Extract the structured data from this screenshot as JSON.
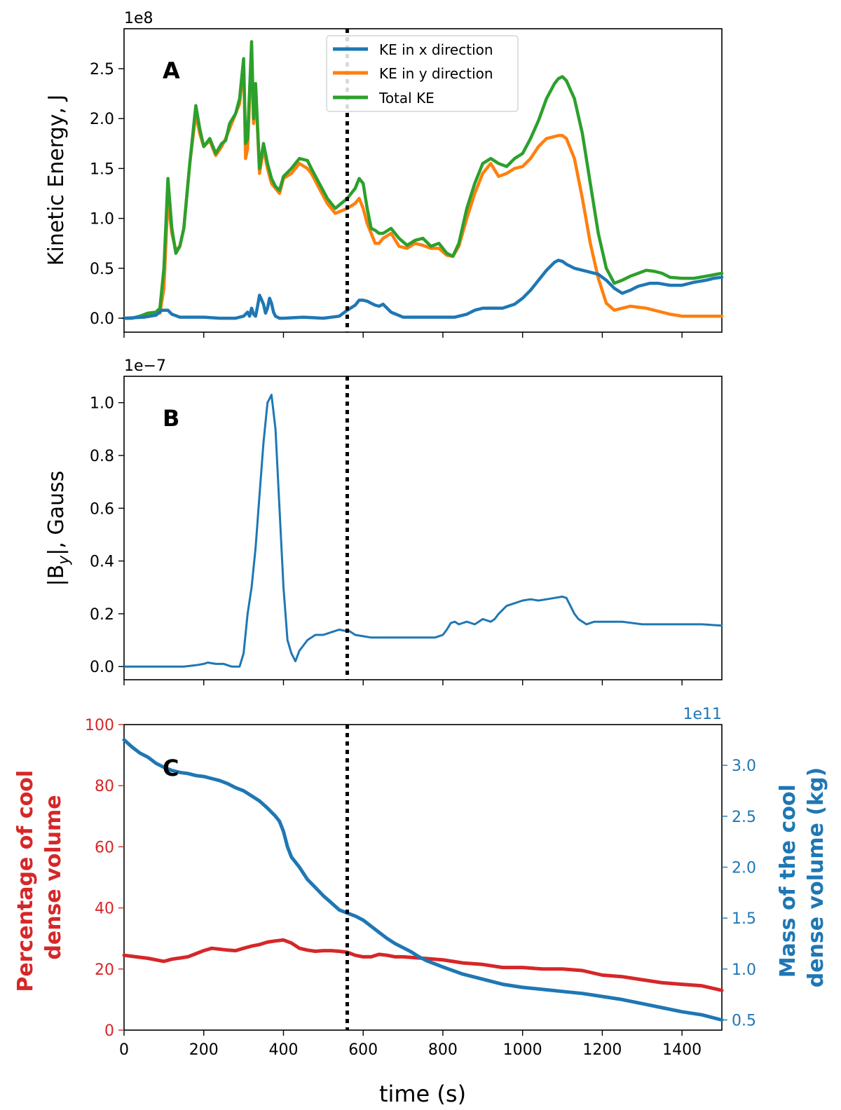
{
  "colors": {
    "blue": "#1f77b4",
    "orange": "#ff7f0e",
    "green": "#2ca02c",
    "red": "#d62728",
    "black": "#000000"
  },
  "vline_time": 560,
  "chart_data": [
    {
      "panel": "A",
      "type": "line",
      "ylabel": "Kinetic Energy, J",
      "offset_label": "1e8",
      "panel_label": "A",
      "xlim": [
        0,
        1500
      ],
      "ylim": [
        -0.14,
        2.9
      ],
      "xticks": [
        0,
        200,
        400,
        600,
        800,
        1000,
        1200,
        1400
      ],
      "yticks": [
        0.0,
        0.5,
        1.0,
        1.5,
        2.0,
        2.5
      ],
      "ytick_labels": [
        "0.0",
        "0.5",
        "1.0",
        "1.5",
        "2.0",
        "2.5"
      ],
      "legend_position": "upper-center",
      "series": [
        {
          "name": "KE in y direction",
          "color": "#ff7f0e",
          "x": [
            0,
            20,
            40,
            60,
            80,
            90,
            100,
            110,
            120,
            130,
            140,
            150,
            165,
            180,
            190,
            200,
            215,
            230,
            245,
            255,
            265,
            280,
            290,
            300,
            305,
            310,
            320,
            325,
            330,
            340,
            350,
            360,
            370,
            380,
            390,
            400,
            420,
            440,
            460,
            470,
            490,
            510,
            530,
            560,
            580,
            590,
            600,
            610,
            620,
            630,
            640,
            650,
            670,
            690,
            710,
            730,
            750,
            770,
            790,
            810,
            825,
            840,
            860,
            880,
            900,
            920,
            940,
            960,
            980,
            1000,
            1020,
            1040,
            1060,
            1080,
            1090,
            1100,
            1110,
            1130,
            1150,
            1170,
            1190,
            1210,
            1230,
            1250,
            1270,
            1290,
            1310,
            1330,
            1350,
            1370,
            1400,
            1430,
            1460,
            1500
          ],
          "values": [
            0.0,
            0.0,
            0.02,
            0.05,
            0.05,
            0.05,
            0.3,
            1.2,
            0.85,
            0.68,
            0.72,
            0.9,
            1.55,
            2.05,
            1.85,
            1.72,
            1.78,
            1.63,
            1.72,
            1.8,
            1.9,
            2.05,
            2.15,
            2.55,
            1.6,
            1.7,
            2.7,
            1.95,
            2.3,
            1.45,
            1.7,
            1.5,
            1.35,
            1.3,
            1.25,
            1.4,
            1.45,
            1.55,
            1.5,
            1.45,
            1.3,
            1.15,
            1.05,
            1.1,
            1.15,
            1.2,
            1.1,
            0.95,
            0.85,
            0.75,
            0.75,
            0.8,
            0.85,
            0.72,
            0.7,
            0.75,
            0.73,
            0.7,
            0.7,
            0.63,
            0.62,
            0.72,
            1.0,
            1.25,
            1.45,
            1.55,
            1.42,
            1.45,
            1.5,
            1.52,
            1.6,
            1.72,
            1.8,
            1.82,
            1.83,
            1.83,
            1.8,
            1.6,
            1.2,
            0.75,
            0.4,
            0.15,
            0.08,
            0.1,
            0.12,
            0.11,
            0.1,
            0.08,
            0.06,
            0.04,
            0.02,
            0.02,
            0.02,
            0.02
          ]
        },
        {
          "name": "Total KE",
          "color": "#2ca02c",
          "x": [
            0,
            20,
            40,
            60,
            80,
            90,
            100,
            110,
            120,
            130,
            140,
            150,
            165,
            180,
            190,
            200,
            215,
            230,
            245,
            255,
            265,
            280,
            290,
            300,
            305,
            310,
            320,
            325,
            330,
            340,
            350,
            360,
            370,
            380,
            390,
            400,
            420,
            440,
            460,
            470,
            490,
            510,
            530,
            560,
            580,
            590,
            600,
            610,
            620,
            630,
            640,
            650,
            670,
            690,
            710,
            730,
            750,
            770,
            790,
            810,
            825,
            840,
            860,
            880,
            900,
            920,
            940,
            960,
            980,
            1000,
            1020,
            1040,
            1060,
            1080,
            1090,
            1100,
            1110,
            1130,
            1150,
            1170,
            1190,
            1210,
            1230,
            1250,
            1270,
            1290,
            1310,
            1330,
            1350,
            1370,
            1400,
            1430,
            1460,
            1500
          ],
          "values": [
            0.0,
            0.0,
            0.02,
            0.05,
            0.06,
            0.1,
            0.5,
            1.4,
            0.9,
            0.65,
            0.72,
            0.9,
            1.55,
            2.13,
            1.9,
            1.72,
            1.8,
            1.65,
            1.75,
            1.78,
            1.95,
            2.05,
            2.2,
            2.6,
            1.75,
            1.8,
            2.77,
            2.0,
            2.35,
            1.5,
            1.75,
            1.55,
            1.4,
            1.32,
            1.28,
            1.42,
            1.5,
            1.6,
            1.58,
            1.5,
            1.35,
            1.2,
            1.1,
            1.2,
            1.3,
            1.4,
            1.35,
            1.1,
            0.9,
            0.88,
            0.85,
            0.85,
            0.9,
            0.8,
            0.73,
            0.78,
            0.8,
            0.72,
            0.75,
            0.65,
            0.62,
            0.75,
            1.1,
            1.35,
            1.55,
            1.6,
            1.55,
            1.52,
            1.6,
            1.65,
            1.8,
            1.98,
            2.2,
            2.35,
            2.4,
            2.42,
            2.38,
            2.2,
            1.85,
            1.35,
            0.85,
            0.5,
            0.35,
            0.38,
            0.42,
            0.45,
            0.48,
            0.47,
            0.45,
            0.41,
            0.4,
            0.4,
            0.42,
            0.45
          ]
        },
        {
          "name": "KE in x direction",
          "color": "#1f77b4",
          "x": [
            0,
            50,
            80,
            95,
            110,
            120,
            140,
            170,
            200,
            240,
            280,
            300,
            310,
            315,
            320,
            325,
            330,
            335,
            340,
            350,
            355,
            360,
            365,
            370,
            375,
            380,
            390,
            400,
            450,
            500,
            540,
            560,
            580,
            590,
            600,
            610,
            620,
            630,
            640,
            650,
            660,
            670,
            700,
            750,
            800,
            830,
            860,
            880,
            900,
            920,
            950,
            980,
            1000,
            1020,
            1040,
            1060,
            1080,
            1090,
            1100,
            1110,
            1130,
            1160,
            1190,
            1210,
            1230,
            1250,
            1270,
            1290,
            1320,
            1340,
            1370,
            1400,
            1430,
            1460,
            1480,
            1500
          ],
          "values": [
            0.0,
            0.01,
            0.03,
            0.08,
            0.08,
            0.04,
            0.01,
            0.01,
            0.01,
            0.0,
            0.0,
            0.02,
            0.06,
            0.02,
            0.1,
            0.04,
            0.02,
            0.12,
            0.23,
            0.14,
            0.05,
            0.1,
            0.2,
            0.15,
            0.06,
            0.02,
            0.0,
            0.0,
            0.01,
            0.0,
            0.02,
            0.08,
            0.13,
            0.18,
            0.18,
            0.17,
            0.15,
            0.13,
            0.12,
            0.14,
            0.1,
            0.06,
            0.01,
            0.01,
            0.01,
            0.01,
            0.04,
            0.08,
            0.1,
            0.1,
            0.1,
            0.14,
            0.2,
            0.28,
            0.38,
            0.48,
            0.56,
            0.58,
            0.57,
            0.54,
            0.5,
            0.47,
            0.44,
            0.38,
            0.3,
            0.25,
            0.28,
            0.32,
            0.35,
            0.35,
            0.33,
            0.33,
            0.36,
            0.38,
            0.4,
            0.41
          ]
        }
      ]
    },
    {
      "panel": "B",
      "type": "line",
      "ylabel": "|B",
      "ylabel_sub": "y",
      "ylabel_tail": "|, Gauss",
      "offset_label": "1e−7",
      "panel_label": "B",
      "xlim": [
        0,
        1500
      ],
      "ylim": [
        -0.05,
        1.1
      ],
      "xticks": [
        0,
        200,
        400,
        600,
        800,
        1000,
        1200,
        1400
      ],
      "yticks": [
        0.0,
        0.2,
        0.4,
        0.6,
        0.8,
        1.0
      ],
      "ytick_labels": [
        "0.0",
        "0.2",
        "0.4",
        "0.6",
        "0.8",
        "1.0"
      ],
      "series": [
        {
          "name": "|By|",
          "color": "#1f77b4",
          "x": [
            0,
            100,
            150,
            180,
            200,
            210,
            230,
            250,
            270,
            280,
            290,
            300,
            310,
            320,
            330,
            340,
            350,
            360,
            370,
            380,
            390,
            400,
            410,
            420,
            430,
            440,
            450,
            460,
            470,
            480,
            500,
            520,
            540,
            555,
            560,
            570,
            580,
            600,
            620,
            650,
            700,
            750,
            780,
            790,
            800,
            810,
            820,
            830,
            840,
            850,
            860,
            870,
            880,
            890,
            900,
            910,
            920,
            930,
            940,
            960,
            980,
            1000,
            1020,
            1040,
            1060,
            1080,
            1100,
            1110,
            1120,
            1130,
            1140,
            1160,
            1180,
            1200,
            1250,
            1300,
            1400,
            1450,
            1500
          ],
          "values": [
            0.0,
            0.0,
            0.0,
            0.005,
            0.01,
            0.015,
            0.01,
            0.01,
            0.0,
            0.0,
            0.0,
            0.05,
            0.2,
            0.3,
            0.45,
            0.65,
            0.85,
            1.0,
            1.03,
            0.9,
            0.6,
            0.3,
            0.1,
            0.05,
            0.02,
            0.06,
            0.08,
            0.1,
            0.11,
            0.12,
            0.12,
            0.13,
            0.14,
            0.135,
            0.14,
            0.13,
            0.12,
            0.115,
            0.11,
            0.11,
            0.11,
            0.11,
            0.11,
            0.115,
            0.12,
            0.14,
            0.165,
            0.17,
            0.16,
            0.165,
            0.17,
            0.165,
            0.16,
            0.17,
            0.18,
            0.175,
            0.17,
            0.18,
            0.2,
            0.23,
            0.24,
            0.25,
            0.255,
            0.25,
            0.255,
            0.26,
            0.265,
            0.26,
            0.23,
            0.2,
            0.18,
            0.16,
            0.17,
            0.17,
            0.17,
            0.16,
            0.16,
            0.16,
            0.155
          ]
        }
      ]
    },
    {
      "panel": "C",
      "type": "line",
      "ylabel_left": [
        "Percentage of cool",
        "dense volume"
      ],
      "ylabel_right": [
        "Mass of the cool",
        "dense volume (kg)"
      ],
      "xlabel": "time (s)",
      "offset_label_right": "1e11",
      "panel_label": "C",
      "xlim": [
        0,
        1500
      ],
      "ylim_left": [
        0,
        100
      ],
      "ylim_right": [
        0.4,
        3.4
      ],
      "xticks": [
        0,
        200,
        400,
        600,
        800,
        1000,
        1200,
        1400
      ],
      "xtick_labels": [
        "0",
        "200",
        "400",
        "600",
        "800",
        "1000",
        "1200",
        "1400"
      ],
      "yticks_left": [
        0,
        20,
        40,
        60,
        80,
        100
      ],
      "ytick_labels_left": [
        "0",
        "20",
        "40",
        "60",
        "80",
        "100"
      ],
      "yticks_right": [
        0.5,
        1.0,
        1.5,
        2.0,
        2.5,
        3.0
      ],
      "ytick_labels_right": [
        "0.5",
        "1.0",
        "1.5",
        "2.0",
        "2.5",
        "3.0"
      ],
      "series": [
        {
          "name": "Percentage of cool dense volume",
          "axis": "left",
          "color": "#d62728",
          "x": [
            0,
            30,
            60,
            100,
            120,
            140,
            160,
            180,
            200,
            220,
            240,
            260,
            280,
            300,
            320,
            340,
            360,
            380,
            400,
            420,
            440,
            460,
            480,
            500,
            520,
            540,
            560,
            580,
            600,
            620,
            640,
            660,
            680,
            700,
            750,
            800,
            850,
            900,
            950,
            1000,
            1050,
            1100,
            1150,
            1200,
            1250,
            1300,
            1350,
            1400,
            1450,
            1500
          ],
          "values": [
            24.5,
            24,
            23.5,
            22.5,
            23.2,
            23.6,
            24,
            25,
            26,
            26.8,
            26.5,
            26.2,
            26,
            26.8,
            27.5,
            28,
            28.8,
            29.2,
            29.5,
            28.5,
            26.8,
            26.2,
            25.8,
            26,
            26,
            25.8,
            25.5,
            24.5,
            24,
            24,
            24.8,
            24.5,
            24,
            24,
            23.5,
            23,
            22,
            21.5,
            20.5,
            20.5,
            20,
            20,
            19.5,
            18,
            17.5,
            16.5,
            15.5,
            15,
            14.5,
            13
          ]
        },
        {
          "name": "Mass of the cool dense volume",
          "axis": "right",
          "color": "#1f77b4",
          "x": [
            0,
            20,
            40,
            60,
            80,
            100,
            120,
            140,
            160,
            180,
            200,
            220,
            240,
            260,
            280,
            300,
            320,
            340,
            360,
            380,
            390,
            400,
            410,
            420,
            440,
            460,
            480,
            500,
            520,
            540,
            560,
            580,
            600,
            620,
            640,
            660,
            680,
            700,
            720,
            740,
            760,
            780,
            800,
            850,
            900,
            950,
            1000,
            1050,
            1100,
            1150,
            1200,
            1250,
            1300,
            1350,
            1400,
            1450,
            1500
          ],
          "values": [
            3.25,
            3.18,
            3.12,
            3.08,
            3.02,
            2.98,
            2.95,
            2.93,
            2.92,
            2.9,
            2.89,
            2.87,
            2.85,
            2.82,
            2.78,
            2.75,
            2.7,
            2.65,
            2.58,
            2.5,
            2.45,
            2.35,
            2.2,
            2.1,
            2.0,
            1.88,
            1.8,
            1.72,
            1.65,
            1.58,
            1.55,
            1.52,
            1.48,
            1.42,
            1.36,
            1.3,
            1.25,
            1.21,
            1.17,
            1.12,
            1.08,
            1.05,
            1.02,
            0.95,
            0.9,
            0.85,
            0.82,
            0.8,
            0.78,
            0.76,
            0.73,
            0.7,
            0.66,
            0.62,
            0.58,
            0.55,
            0.5
          ]
        }
      ]
    }
  ]
}
